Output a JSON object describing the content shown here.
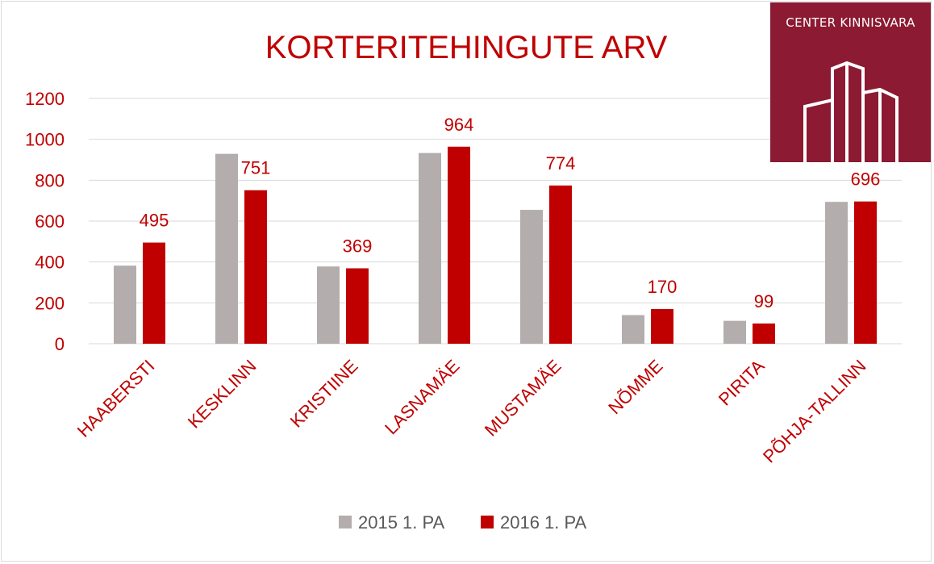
{
  "logo": {
    "text": "CENTER KINNISVARA",
    "background": "#8b1a32"
  },
  "chart_data": {
    "type": "bar",
    "title": "KORTERITEHINGUTE ARV",
    "xlabel": "",
    "ylabel": "",
    "ylim": [
      0,
      1200
    ],
    "yticks": [
      0,
      200,
      400,
      600,
      800,
      1000,
      1200
    ],
    "grid": true,
    "legend_position": "bottom",
    "categories": [
      "HAABERSTI",
      "KESKLINN",
      "KRISTIINE",
      "LASNAMÄE",
      "MUSTAMÄE",
      "NÕMME",
      "PIRITA",
      "PÕHJA-TALLINN"
    ],
    "series": [
      {
        "name": "2015 1. PA",
        "color": "#b3adad",
        "values": [
          382,
          929,
          378,
          933,
          655,
          140,
          112,
          694
        ],
        "show_labels": false
      },
      {
        "name": "2016 1. PA",
        "color": "#c00000",
        "values": [
          495,
          751,
          369,
          964,
          774,
          170,
          99,
          696
        ],
        "show_labels": true
      }
    ]
  }
}
